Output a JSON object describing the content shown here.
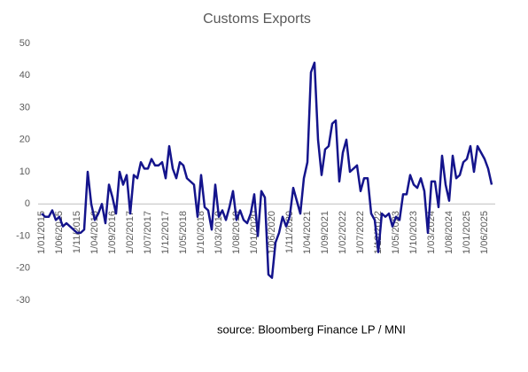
{
  "chart_data": {
    "type": "line",
    "title": "Customs Exports",
    "categories": [
      "1/01/2015",
      null,
      null,
      null,
      null,
      "1/06/2015",
      null,
      null,
      null,
      null,
      "1/11/2015",
      null,
      null,
      null,
      null,
      "1/04/2016",
      null,
      null,
      null,
      null,
      "1/09/2016",
      null,
      null,
      null,
      null,
      "1/02/2017",
      null,
      null,
      null,
      null,
      "1/07/2017",
      null,
      null,
      null,
      null,
      "1/12/2017",
      null,
      null,
      null,
      null,
      "1/05/2018",
      null,
      null,
      null,
      null,
      "1/10/2018",
      null,
      null,
      null,
      null,
      "1/03/2019",
      null,
      null,
      null,
      null,
      "1/08/2019",
      null,
      null,
      null,
      null,
      "1/01/2020",
      null,
      null,
      null,
      null,
      "1/06/2020",
      null,
      null,
      null,
      null,
      "1/11/2020",
      null,
      null,
      null,
      null,
      "1/04/2021",
      null,
      null,
      null,
      null,
      "1/09/2021",
      null,
      null,
      null,
      null,
      "1/02/2022",
      null,
      null,
      null,
      null,
      "1/07/2022",
      null,
      null,
      null,
      null,
      "1/12/2022",
      null,
      null,
      null,
      null,
      "1/05/2023",
      null,
      null,
      null,
      null,
      "1/10/2023",
      null,
      null,
      null,
      null,
      "1/03/2024",
      null,
      null,
      null,
      null,
      "1/08/2024",
      null,
      null,
      null,
      null,
      "1/01/2025",
      null,
      null,
      null,
      null,
      "1/06/2025",
      null,
      null
    ],
    "series": [
      {
        "name": "Customs Exports",
        "color": "#14148c",
        "values": [
          -3,
          -4,
          -4,
          -2,
          -5,
          -4,
          -7,
          -6,
          -7,
          -8,
          -9,
          -9,
          -8,
          10,
          0,
          -5,
          -3,
          0,
          -6,
          6,
          2,
          -3,
          10,
          6,
          9,
          -3,
          9,
          8,
          13,
          11,
          11,
          14,
          12,
          12,
          13,
          8,
          18,
          11,
          8,
          13,
          12,
          8,
          7,
          6,
          -4,
          9,
          -1,
          -2,
          -8,
          6,
          -4,
          -2,
          -5,
          -1,
          4,
          -5,
          -2,
          -5,
          -6,
          -3,
          3,
          -10,
          4,
          2,
          -22,
          -23,
          -12,
          -9,
          -4,
          -7,
          -4,
          5,
          1,
          -3,
          8,
          13,
          41,
          44,
          20,
          9,
          17,
          18,
          25,
          26,
          7,
          16,
          20,
          10,
          11,
          12,
          4,
          8,
          8,
          -3,
          -5,
          -15,
          -3,
          -4,
          -3,
          -7,
          -4,
          -5,
          3,
          3,
          9,
          6,
          5,
          8,
          4,
          -9,
          7,
          7,
          -1,
          15,
          6,
          1,
          15,
          8,
          9,
          13,
          14,
          18,
          10,
          18,
          16,
          14,
          11,
          6
        ]
      }
    ],
    "ylim": [
      -30,
      50
    ],
    "yticks": [
      -30,
      -20,
      -10,
      0,
      10,
      20,
      30,
      40,
      50
    ],
    "grid": false,
    "source": "source:  Bloomberg Finance LP / MNI"
  }
}
